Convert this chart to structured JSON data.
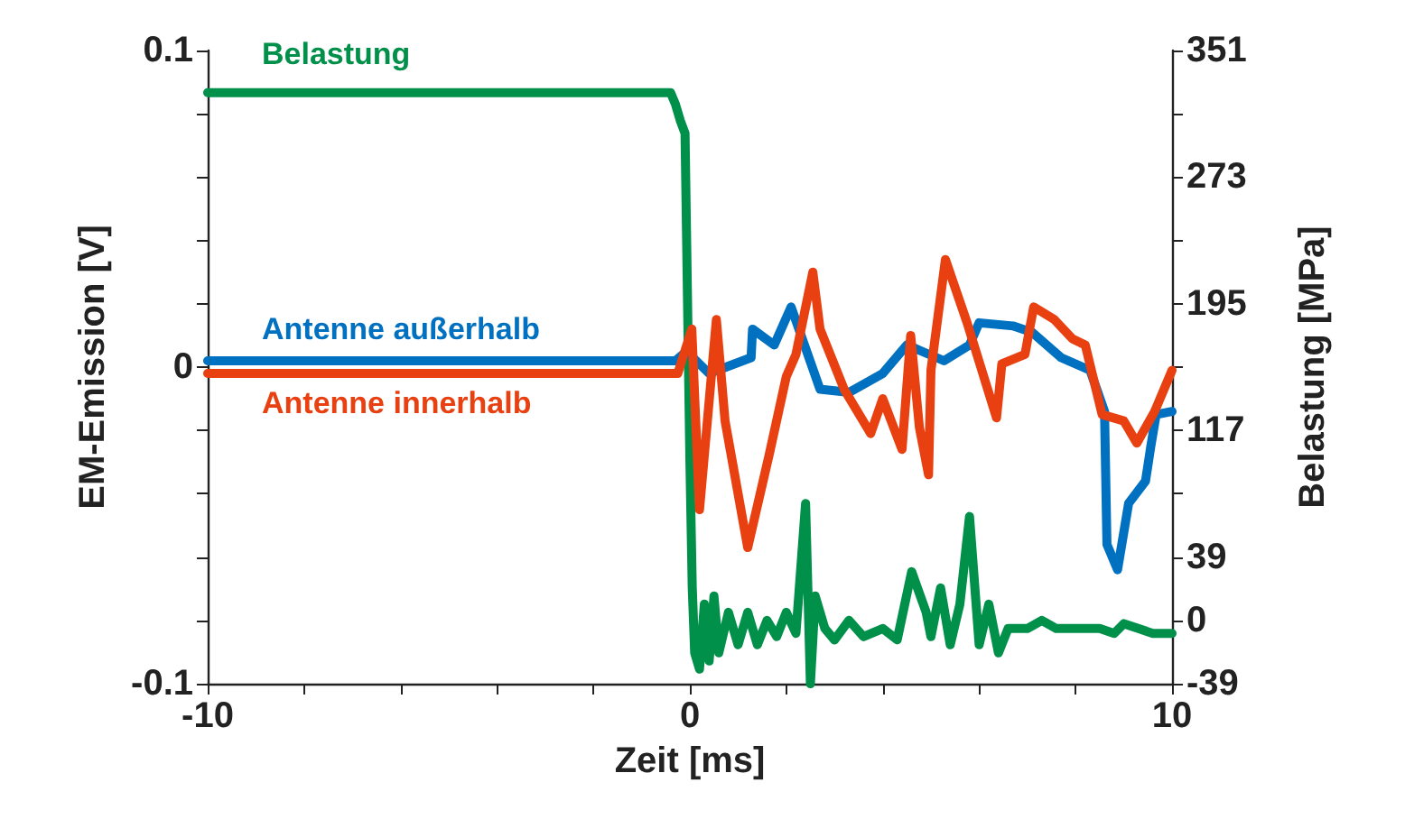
{
  "chart_data": {
    "type": "line",
    "xlabel": "Zeit [ms]",
    "ylabel": "EM-Emission [V]",
    "y2label": "Belastung [MPa]",
    "xlim": [
      -10,
      10
    ],
    "xticks": [
      -10,
      {
        "value": -8,
        "label": null
      },
      {
        "value": -6,
        "label": null
      },
      {
        "value": -4,
        "label": null
      },
      {
        "value": -2,
        "label": null
      },
      0,
      {
        "value": 2,
        "label": null
      },
      {
        "value": 4,
        "label": null
      },
      {
        "value": 6,
        "label": null
      },
      {
        "value": 8,
        "label": null
      },
      10
    ],
    "ylim": [
      -0.1,
      0.1
    ],
    "yticks": [
      -0.1,
      {
        "value": -0.08,
        "label": null
      },
      {
        "value": -0.06,
        "label": null
      },
      {
        "value": -0.04,
        "label": null
      },
      {
        "value": -0.02,
        "label": null
      },
      0,
      {
        "value": 0.02,
        "label": null
      },
      {
        "value": 0.04,
        "label": null
      },
      {
        "value": 0.06,
        "label": null
      },
      {
        "value": 0.08,
        "label": null
      },
      0.1
    ],
    "y2lim": [
      -39,
      351
    ],
    "y2ticks": [
      -39,
      0,
      39,
      {
        "value": 78,
        "label": null
      },
      117,
      {
        "value": 156,
        "label": null
      },
      195,
      {
        "value": 234,
        "label": null
      },
      273,
      {
        "value": 312,
        "label": null
      },
      351
    ],
    "grid": false,
    "legend": false,
    "marker": "none",
    "line_style": "solid",
    "series": [
      {
        "name": "Belastung",
        "color": "#00904a",
        "axis": "y2",
        "x": [
          -10,
          -0.4,
          -0.3,
          -0.2,
          -0.1,
          0,
          0.05,
          0.1,
          0.2,
          0.3,
          0.4,
          0.5,
          0.6,
          0.8,
          1,
          1.2,
          1.4,
          1.6,
          1.8,
          2,
          2.2,
          2.4,
          2.5,
          2.6,
          2.8,
          3,
          3.3,
          3.6,
          4,
          4.3,
          4.6,
          4.9,
          5,
          5.2,
          5.4,
          5.6,
          5.8,
          6,
          6.2,
          6.4,
          6.6,
          7,
          7.3,
          7.6,
          8,
          8.5,
          8.8,
          9,
          9.3,
          9.6,
          10
        ],
        "values": [
          325,
          325,
          318,
          308,
          300,
          100,
          20,
          -20,
          -30,
          10,
          -25,
          15,
          -20,
          5,
          -15,
          5,
          -15,
          0,
          -10,
          5,
          -8,
          72,
          -39,
          15,
          -5,
          -12,
          0,
          -10,
          -5,
          -12,
          30,
          5,
          -10,
          20,
          -15,
          10,
          64,
          -15,
          10,
          -20,
          -5,
          -5,
          0,
          -5,
          -5,
          -5,
          -8,
          -2,
          -5,
          -8,
          -8
        ]
      },
      {
        "name": "Antenne außerhalb",
        "color": "#0070c0",
        "x": [
          -10,
          -0.3,
          -0.07,
          0.4,
          1.27,
          1.3,
          1.75,
          2.1,
          2.7,
          3.3,
          4,
          4.5,
          5.27,
          5.8,
          6,
          6.7,
          7.1,
          7.7,
          8.3,
          8.6,
          8.65,
          8.87,
          9.1,
          9.45,
          9.56,
          9.67,
          10
        ],
        "values": [
          0.002,
          0.002,
          0.005,
          -0.002,
          0.003,
          0.012,
          0.007,
          0.019,
          -0.007,
          -0.008,
          -0.002,
          0.007,
          0.002,
          0.007,
          0.014,
          0.013,
          0.011,
          0.003,
          -0.001,
          -0.014,
          -0.056,
          -0.064,
          -0.043,
          -0.036,
          -0.025,
          -0.015,
          -0.014
        ]
      },
      {
        "name": "Antenne innerhalb",
        "color": "#e84010",
        "x": [
          -10,
          -0.25,
          0.04,
          0.2,
          0.55,
          0.73,
          1.2,
          1.64,
          2,
          2.2,
          2.55,
          2.7,
          3.2,
          3.75,
          4,
          4.4,
          4.58,
          4.76,
          4.95,
          5,
          5.3,
          5.75,
          6.36,
          6.47,
          6.95,
          7.13,
          7.56,
          7.93,
          8.2,
          8.55,
          9,
          9.27,
          9.64,
          10
        ],
        "values": [
          -0.002,
          -0.002,
          0.012,
          -0.045,
          0.015,
          -0.017,
          -0.057,
          -0.028,
          -0.003,
          0.004,
          0.03,
          0.012,
          -0.007,
          -0.021,
          -0.01,
          -0.026,
          0.01,
          -0.019,
          -0.034,
          -0.001,
          0.034,
          0.014,
          -0.016,
          0.001,
          0.004,
          0.019,
          0.015,
          0.009,
          0.007,
          -0.015,
          -0.017,
          -0.024,
          -0.014,
          -0.001
        ]
      }
    ]
  }
}
